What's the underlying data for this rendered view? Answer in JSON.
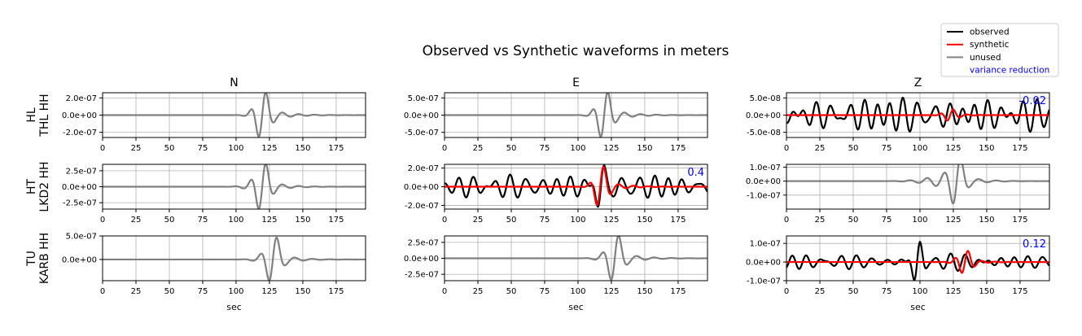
{
  "figure": {
    "title": "Observed vs Synthetic waveforms in meters",
    "xlabel": "sec"
  },
  "legend": {
    "placement": "top-right",
    "entries": [
      {
        "label": "observed",
        "color": "#000000",
        "kind": "line"
      },
      {
        "label": "synthetic",
        "color": "#ff0000",
        "kind": "line"
      },
      {
        "label": "unused",
        "color": "#808080",
        "kind": "line"
      },
      {
        "label": "variance reduction",
        "color": "#0000ff",
        "kind": "text"
      }
    ]
  },
  "chart_data": {
    "type": "line",
    "grid": true,
    "columns": [
      "N",
      "E",
      "Z"
    ],
    "rows": [
      {
        "network": "HL",
        "station": "THL HH"
      },
      {
        "network": "HT",
        "station": "LKD2 HH"
      },
      {
        "network": "TU",
        "station": "KARB HH"
      }
    ],
    "xlim": [
      0,
      197
    ],
    "xticks": [
      0,
      25,
      50,
      75,
      100,
      125,
      150,
      175
    ],
    "panels": [
      {
        "row": 0,
        "col": 0,
        "used": false,
        "ylim": [
          -2.6e-07,
          2.6e-07
        ],
        "yticks": [
          -2e-07,
          0,
          2e-07
        ],
        "ytick_labels": [
          "-2.0e-07",
          "0.0e+00",
          "2.0e-07"
        ],
        "waves": [
          {
            "kind": "unused",
            "t0": 120,
            "amp": 2.5e-07,
            "dur": 12,
            "pre": 20,
            "coda": 40
          }
        ],
        "variance_reduction": ""
      },
      {
        "row": 0,
        "col": 1,
        "used": false,
        "ylim": [
          -6.5e-07,
          6.5e-07
        ],
        "yticks": [
          -5e-07,
          0,
          5e-07
        ],
        "ytick_labels": [
          "-5.0e-07",
          "0.0e+00",
          "5.0e-07"
        ],
        "waves": [
          {
            "kind": "unused",
            "t0": 120,
            "amp": 6.3e-07,
            "dur": 12,
            "pre": 20,
            "coda": 40
          }
        ],
        "variance_reduction": ""
      },
      {
        "row": 0,
        "col": 2,
        "used": true,
        "ylim": [
          -6.5e-08,
          6.5e-08
        ],
        "yticks": [
          -5e-08,
          0,
          5e-08
        ],
        "ytick_labels": [
          "-5.0e-08",
          "0.0e+00",
          "5.0e-08"
        ],
        "waves": [
          {
            "kind": "observed",
            "style": "noise",
            "amp": 5.5e-08,
            "period": 10.5,
            "seed": 7
          },
          {
            "kind": "synthetic",
            "t0": 123,
            "amp": 1.5e-08,
            "dur": 10,
            "pre": 15,
            "coda": 30
          }
        ],
        "variance_reduction": "-0.02"
      },
      {
        "row": 1,
        "col": 0,
        "used": false,
        "ylim": [
          -3.5e-07,
          3.5e-07
        ],
        "yticks": [
          -2.5e-07,
          0,
          2.5e-07
        ],
        "ytick_labels": [
          "-2.5e-07",
          "0.0e+00",
          "2.5e-07"
        ],
        "waves": [
          {
            "kind": "unused",
            "t0": 120,
            "amp": 3.4e-07,
            "dur": 12,
            "pre": 25,
            "coda": 35
          }
        ],
        "variance_reduction": ""
      },
      {
        "row": 1,
        "col": 1,
        "used": true,
        "ylim": [
          -2.4e-07,
          2.4e-07
        ],
        "yticks": [
          -2e-07,
          0,
          2e-07
        ],
        "ytick_labels": [
          "-2.0e-07",
          "0.0e+00",
          "2.0e-07"
        ],
        "waves": [
          {
            "kind": "observed",
            "style": "noise+event",
            "amp": 1.2e-07,
            "period": 11,
            "seed": 3,
            "t0": 117,
            "event_amp": 2.2e-07
          },
          {
            "kind": "synthetic",
            "t0": 117,
            "amp": 2e-07,
            "dur": 11,
            "pre": 12,
            "coda": 40
          }
        ],
        "variance_reduction": "0.4"
      },
      {
        "row": 1,
        "col": 2,
        "used": false,
        "ylim": [
          -2e-07,
          1.2e-07
        ],
        "yticks": [
          -1e-07,
          0,
          1e-07
        ],
        "ytick_labels": [
          "-1.0e-07",
          "0.0e+00",
          "1.0e-07"
        ],
        "waves": [
          {
            "kind": "unused",
            "t0": 128,
            "amp": 1.6e-07,
            "dur": 13,
            "pre": 50,
            "coda": 35
          }
        ],
        "variance_reduction": ""
      },
      {
        "row": 2,
        "col": 0,
        "used": false,
        "ylim": [
          -4.5e-07,
          5e-07
        ],
        "yticks": [
          0,
          5e-07
        ],
        "ytick_labels": [
          "0.0e+00",
          "5.0e-07"
        ],
        "waves": [
          {
            "kind": "unused",
            "t0": 128,
            "amp": 4.5e-07,
            "dur": 13,
            "pre": 25,
            "coda": 35
          }
        ],
        "variance_reduction": ""
      },
      {
        "row": 2,
        "col": 1,
        "used": false,
        "ylim": [
          -3.5e-07,
          3.5e-07
        ],
        "yticks": [
          -2.5e-07,
          0,
          2.5e-07
        ],
        "ytick_labels": [
          "-2.5e-07",
          "0.0e+00",
          "2.5e-07"
        ],
        "waves": [
          {
            "kind": "unused",
            "t0": 128,
            "amp": 3.4e-07,
            "dur": 13,
            "pre": 25,
            "coda": 40
          }
        ],
        "variance_reduction": ""
      },
      {
        "row": 2,
        "col": 2,
        "used": true,
        "ylim": [
          -1e-07,
          1.4e-07
        ],
        "yticks": [
          -1e-07,
          0,
          1e-07
        ],
        "ytick_labels": [
          "-1.0e-07",
          "0.0e+00",
          "1.0e-07"
        ],
        "waves": [
          {
            "kind": "observed",
            "style": "noise+event",
            "amp": 4e-08,
            "period": 11,
            "seed": 11,
            "t0": 98,
            "event_amp": 1.3e-07
          },
          {
            "kind": "synthetic",
            "t0": 134,
            "amp": 5.5e-08,
            "dur": 10,
            "pre": 20,
            "coda": 30
          }
        ],
        "variance_reduction": "0.12"
      }
    ]
  }
}
